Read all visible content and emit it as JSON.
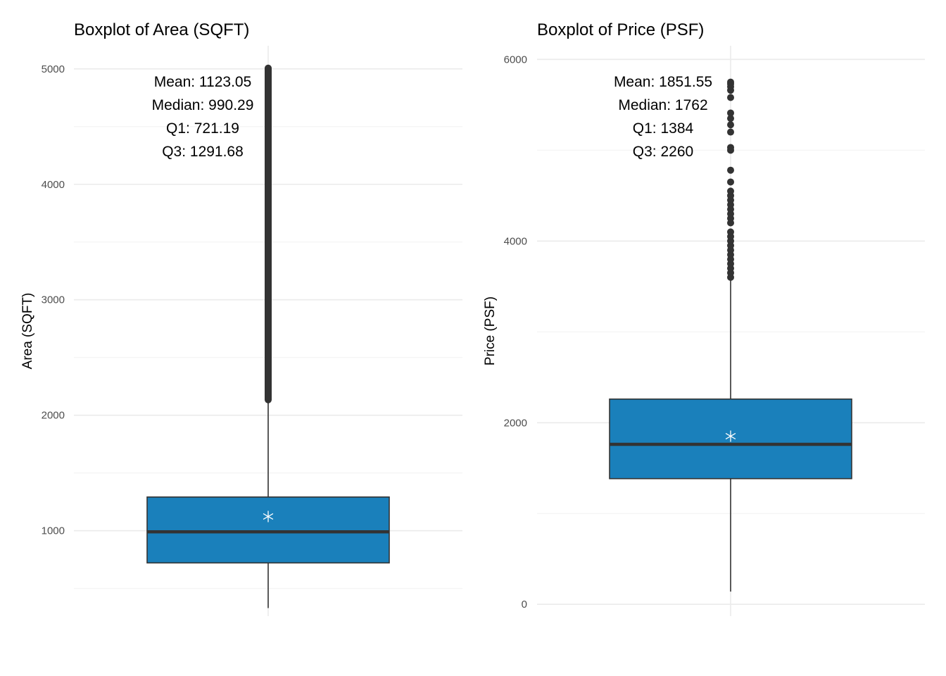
{
  "chart_data": [
    {
      "type": "box",
      "title": "Boxplot of Area (SQFT)",
      "ylabel": "Area (SQFT)",
      "xlabel": "",
      "ylim": [
        260,
        5200
      ],
      "y_ticks": [
        1000,
        2000,
        3000,
        4000,
        5000
      ],
      "grid": true,
      "box": {
        "q1": 721.19,
        "median": 990.29,
        "q3": 1291.68,
        "mean": 1123.05,
        "whisker_low": 330,
        "whisker_high": 2140
      },
      "outliers_range": [
        2140,
        5000
      ],
      "annotations": [
        "Mean: 1123.05",
        "Median: 990.29",
        "Q1: 721.19",
        "Q3: 1291.68"
      ],
      "fill_color": "#1a80bb"
    },
    {
      "type": "box",
      "title": "Boxplot of Price (PSF)",
      "ylabel": "Price (PSF)",
      "xlabel": "",
      "ylim": [
        -130,
        6150
      ],
      "y_ticks": [
        0,
        2000,
        4000,
        6000
      ],
      "grid": true,
      "box": {
        "q1": 1384,
        "median": 1762,
        "q3": 2260,
        "mean": 1851.55,
        "whisker_low": 140,
        "whisker_high": 3580
      },
      "outliers": [
        3600,
        3650,
        3700,
        3750,
        3800,
        3850,
        3900,
        3950,
        4000,
        4050,
        4100,
        4200,
        4250,
        4300,
        4350,
        4400,
        4450,
        4500,
        4550,
        4650,
        4780,
        5000,
        5030,
        5200,
        5280,
        5350,
        5410,
        5580,
        5660,
        5700,
        5730,
        5750
      ],
      "annotations": [
        "Mean: 1851.55",
        "Median: 1762",
        "Q1: 1384",
        "Q3: 2260"
      ],
      "fill_color": "#1a80bb"
    }
  ]
}
